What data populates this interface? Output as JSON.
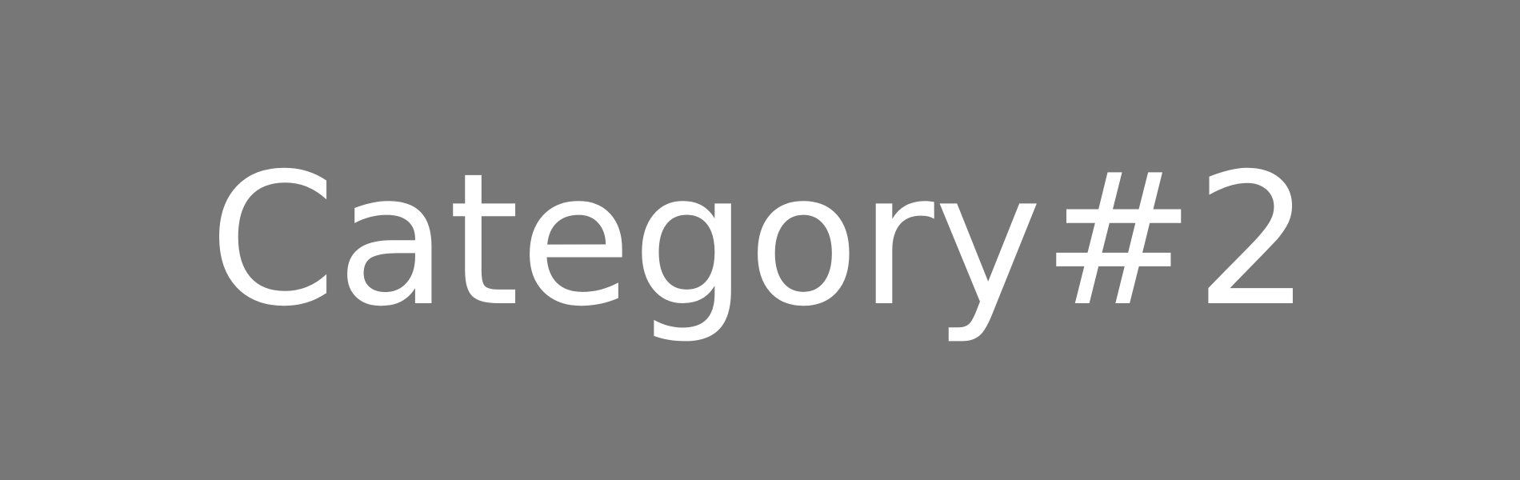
{
  "placeholder": {
    "label": "Category#2",
    "background_color": "#777777",
    "text_color": "#ffffff"
  }
}
